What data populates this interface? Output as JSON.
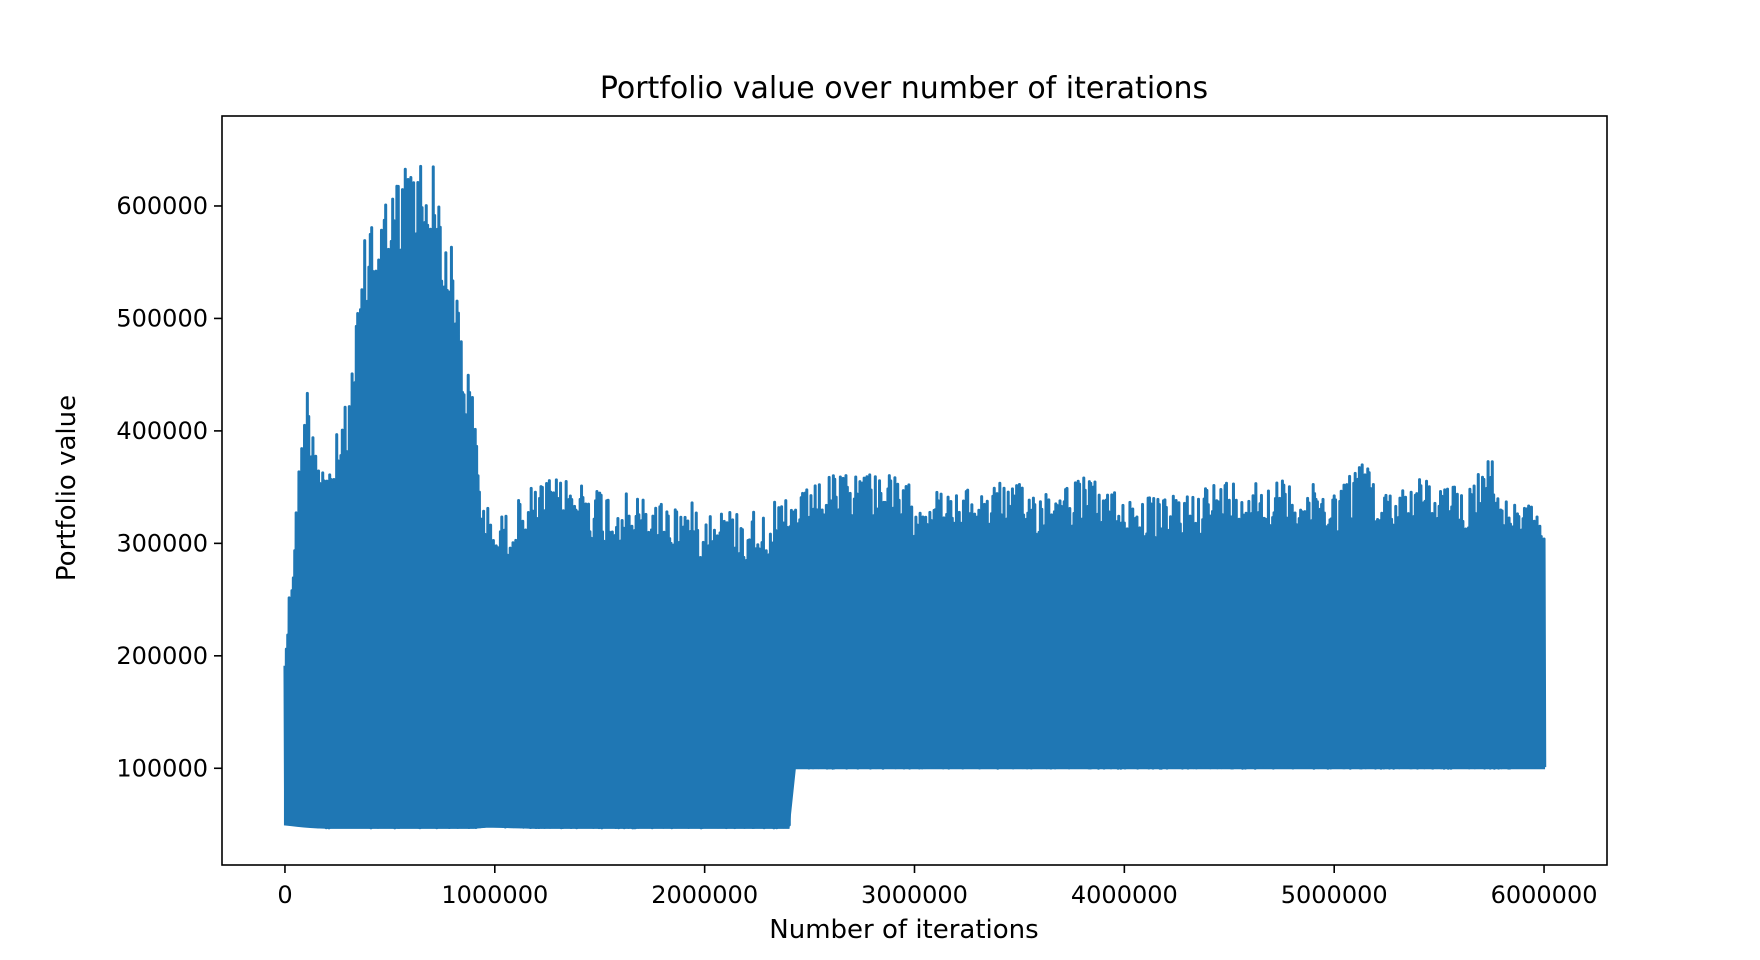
{
  "chart_data": {
    "type": "line",
    "title": "Portfolio value over number of iterations",
    "xlabel": "Number of iterations",
    "ylabel": "Portfolio value",
    "xlim": [
      -300000,
      6300000
    ],
    "ylim": [
      14000,
      680000
    ],
    "xticks": [
      0,
      1000000,
      2000000,
      3000000,
      4000000,
      5000000,
      6000000
    ],
    "xtick_labels": [
      "0",
      "1000000",
      "2000000",
      "3000000",
      "4000000",
      "5000000",
      "6000000"
    ],
    "yticks": [
      100000,
      200000,
      300000,
      400000,
      500000,
      600000
    ],
    "ytick_labels": [
      "100000",
      "200000",
      "300000",
      "400000",
      "500000",
      "600000"
    ],
    "grid": false,
    "color": "#1f77b4",
    "series": [
      {
        "x": [
          0,
          100000,
          200000,
          300000,
          400000,
          500000,
          600000,
          700000,
          800000,
          900000,
          950000,
          1000000,
          1200000,
          1400000,
          1600000,
          1800000,
          2000000,
          2200000,
          2400000,
          2410000,
          2600000,
          2800000,
          3000000,
          3200000,
          3400000,
          3600000,
          3800000,
          4000000,
          4200000,
          4400000,
          4600000,
          4800000,
          5000000,
          5150000,
          5200000,
          5400000,
          5600000,
          5750000,
          5800000,
          6000000
        ],
        "y_max": [
          210000,
          450000,
          370000,
          430000,
          605000,
          615000,
          653000,
          645000,
          560000,
          425000,
          340000,
          320000,
          355000,
          360000,
          345000,
          340000,
          335000,
          330000,
          340000,
          340000,
          360000,
          370000,
          350000,
          345000,
          355000,
          350000,
          360000,
          345000,
          340000,
          355000,
          360000,
          355000,
          350000,
          380000,
          345000,
          360000,
          350000,
          382000,
          340000,
          330000
        ],
        "y_min": [
          50000,
          48000,
          47000,
          47000,
          47000,
          47000,
          47000,
          47000,
          47000,
          47000,
          48000,
          48000,
          47000,
          47000,
          47000,
          47000,
          47000,
          47000,
          47000,
          100000,
          100000,
          100000,
          100000,
          100000,
          100000,
          100000,
          100000,
          100000,
          100000,
          100000,
          100000,
          100000,
          100000,
          100000,
          100000,
          100000,
          100000,
          100000,
          100000,
          100000
        ]
      }
    ]
  }
}
